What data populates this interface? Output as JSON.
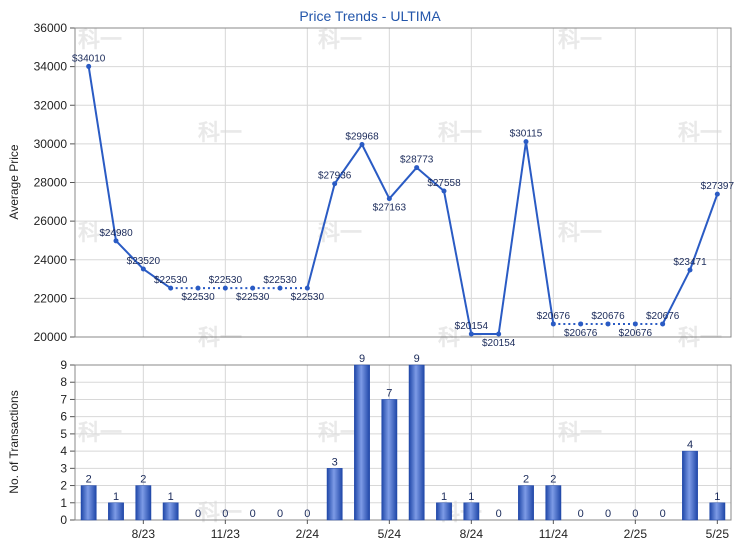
{
  "chart_data": [
    {
      "type": "line",
      "title": "Price Trends - ULTIMA",
      "ylabel": "Average Price",
      "ylim": [
        20000,
        36000
      ],
      "yticks": [
        20000,
        22000,
        24000,
        26000,
        28000,
        30000,
        32000,
        34000,
        36000
      ],
      "grid": true,
      "series": [
        {
          "values": [
            34010,
            24980,
            23520,
            22530,
            22530,
            22530,
            22530,
            22530,
            22530,
            27936,
            29968,
            27163,
            28773,
            27558,
            20154,
            20154,
            30115,
            20676,
            20676,
            20676,
            20676,
            20676,
            23471,
            27397
          ],
          "labels": [
            "$34010",
            "$24980",
            "$23520",
            "$22530",
            "$22530",
            "$22530",
            "$22530",
            "$22530",
            "$22530",
            "$27936",
            "$29968",
            "$27163",
            "$28773",
            "$27558",
            "$20154",
            "$20154",
            "$30115",
            "$20676",
            "$20676",
            "$20676",
            "$20676",
            "$20676",
            "$23471",
            "$27397"
          ],
          "dotted_segments": [
            [
              3,
              8
            ],
            [
              17,
              21
            ]
          ]
        }
      ]
    },
    {
      "type": "bar",
      "ylabel": "No. of Transactions",
      "ylim": [
        0,
        9
      ],
      "yticks": [
        0,
        1,
        2,
        3,
        4,
        5,
        6,
        7,
        8,
        9
      ],
      "grid": true,
      "categories": [
        "",
        "",
        "8/23",
        "",
        "",
        "11/23",
        "",
        "",
        "2/24",
        "",
        "",
        "5/24",
        "",
        "",
        "8/24",
        "",
        "",
        "11/24",
        "",
        "",
        "2/25",
        "",
        "",
        "5/25"
      ],
      "values": [
        2,
        1,
        2,
        1,
        0,
        0,
        0,
        0,
        0,
        3,
        9,
        7,
        9,
        1,
        1,
        0,
        2,
        2,
        0,
        0,
        0,
        0,
        4,
        1
      ]
    }
  ],
  "watermark": "科一",
  "colors": {
    "line": "#2a5bc4",
    "title": "#2255aa",
    "grid": "#d8d8d8",
    "bar_dark": "#1f47a8",
    "bar_light": "#7d9be6"
  }
}
